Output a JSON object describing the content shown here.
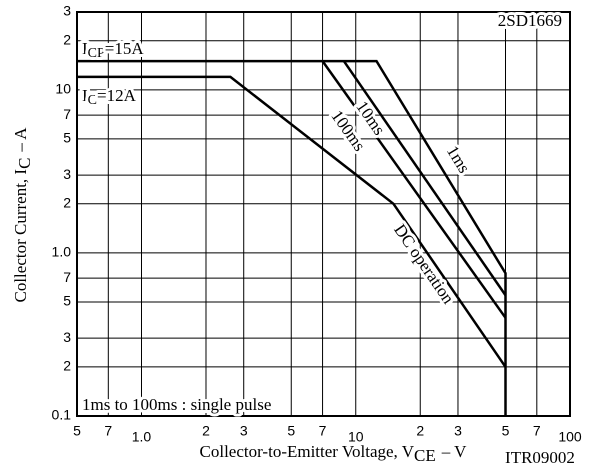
{
  "chart_data": {
    "type": "line",
    "part_number": "2SD1669",
    "code": "ITR09002",
    "note": "1ms to 100ms : single pulse",
    "xlabel": {
      "text": "Collector-to-Emitter Voltage, V",
      "sub": "CE",
      "unit": "–  V"
    },
    "ylabel": {
      "text": "Collector Current, I",
      "sub": "C",
      "unit": "–  A"
    },
    "annotations": [
      {
        "text": "I",
        "sub": "CP",
        "rest": "=15A"
      },
      {
        "text": "I",
        "sub": "C",
        "rest": "=12A"
      }
    ],
    "xscale": "log",
    "yscale": "log",
    "grid": true,
    "xlim": [
      0.5,
      100
    ],
    "ylim": [
      0.1,
      30
    ],
    "xticks": [
      {
        "value": 0.5,
        "label": "5"
      },
      {
        "value": 0.7,
        "label": "7"
      },
      {
        "value": 1,
        "label": "1.0"
      },
      2,
      3,
      5,
      7,
      10,
      {
        "value": 20,
        "label": "2"
      },
      {
        "value": 30,
        "label": "3"
      },
      {
        "value": 50,
        "label": "5"
      },
      {
        "value": 70,
        "label": "7"
      },
      100
    ],
    "yticks": [
      0.1,
      {
        "value": 0.2,
        "label": "2"
      },
      {
        "value": 0.3,
        "label": "3"
      },
      {
        "value": 0.5,
        "label": "5"
      },
      {
        "value": 0.7,
        "label": "7"
      },
      {
        "value": 1,
        "label": "1.0"
      },
      2,
      3,
      5,
      7,
      10,
      {
        "value": 20,
        "label": "2"
      },
      {
        "value": 30,
        "label": "3"
      }
    ],
    "series": [
      {
        "name": "1ms",
        "color": "#000000",
        "x": [
          0.5,
          12.5,
          50,
          50
        ],
        "values": [
          15,
          15,
          0.75,
          0.1
        ]
      },
      {
        "name": "10ms",
        "color": "#000000",
        "x": [
          8.8,
          50
        ],
        "values": [
          15,
          0.55
        ]
      },
      {
        "name": "100ms",
        "color": "#000000",
        "x": [
          7,
          50
        ],
        "values": [
          15,
          0.4
        ]
      },
      {
        "name": "DC operation",
        "color": "#000000",
        "x": [
          0.5,
          2.6,
          15,
          50
        ],
        "values": [
          12,
          12,
          2,
          0.2
        ]
      }
    ]
  }
}
